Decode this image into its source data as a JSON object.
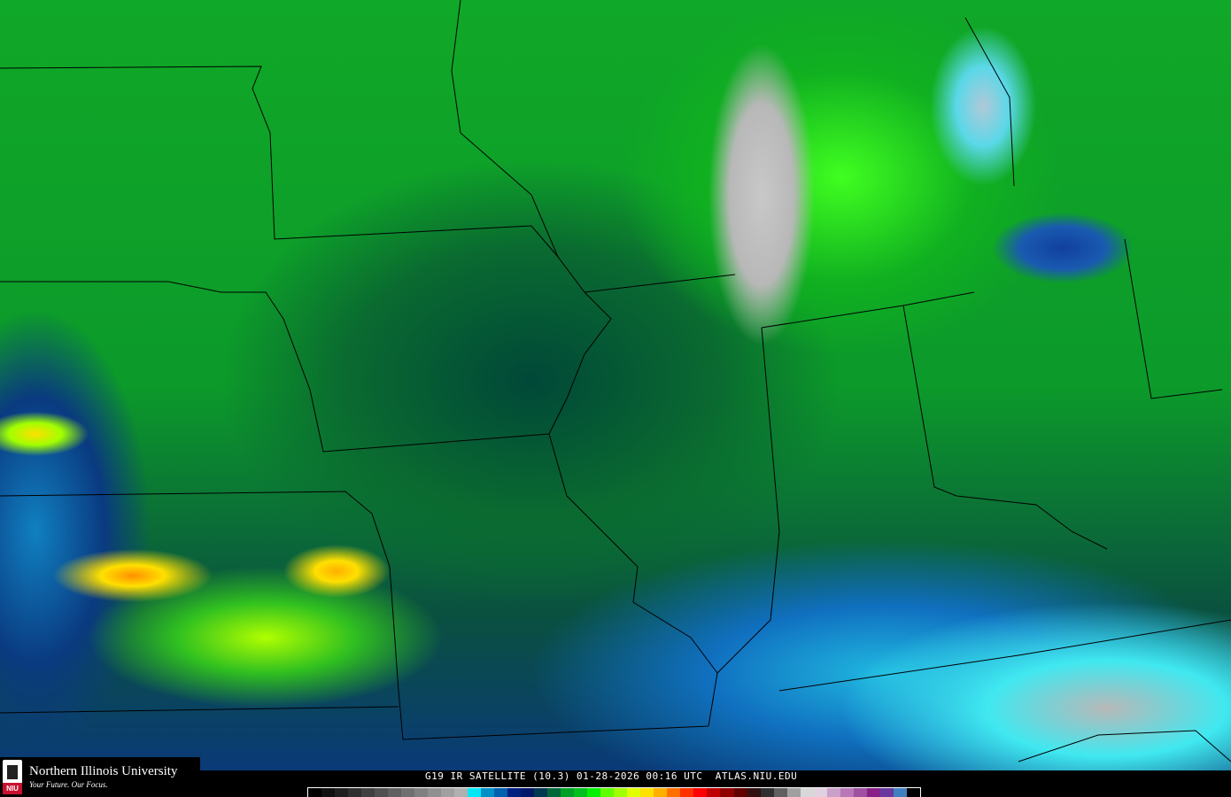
{
  "logo": {
    "name": "Northern Illinois University",
    "tagline": "Your Future. Our Focus.",
    "mark": "NIU"
  },
  "caption": {
    "satellite": "G19",
    "product": "IR SATELLITE",
    "channel": "(10.3)",
    "date": "01-28-2026",
    "time": "00:16 UTC",
    "site": "ATLAS.NIU.EDU"
  },
  "colorbar": {
    "colors": [
      "#000000",
      "#101010",
      "#202020",
      "#303030",
      "#404040",
      "#505050",
      "#606060",
      "#707070",
      "#808080",
      "#909090",
      "#a0a0a0",
      "#b0b0b0",
      "#00e8f8",
      "#0090c8",
      "#0060b0",
      "#002080",
      "#001868",
      "#003850",
      "#006838",
      "#00a028",
      "#00c020",
      "#00f000",
      "#60ff00",
      "#a0ff00",
      "#e0ff00",
      "#ffe000",
      "#ffb000",
      "#ff7000",
      "#ff3000",
      "#ff0000",
      "#c00000",
      "#900000",
      "#600000",
      "#301010",
      "#303030",
      "#606060",
      "#a0a0a0",
      "#d8d8d8",
      "#e0d0e0",
      "#c8a0c8",
      "#b878b8",
      "#a050a0",
      "#882088",
      "#6838a0",
      "#4080c0",
      "#000000"
    ]
  }
}
